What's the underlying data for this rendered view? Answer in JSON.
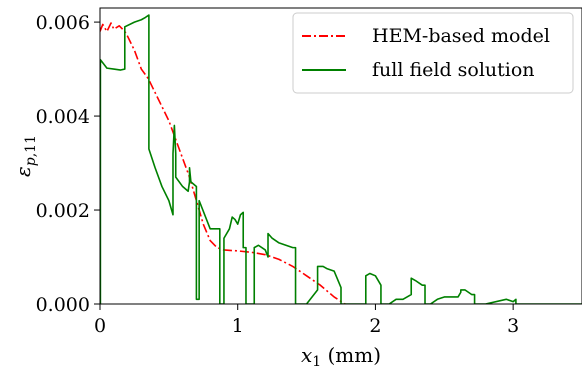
{
  "chart_data": {
    "type": "line",
    "xlabel": "x_1 (mm)",
    "ylabel": "ε_{p,11}",
    "xlim": [
      0,
      3.5
    ],
    "ylim": [
      0,
      0.0063
    ],
    "x_ticks": [
      0,
      1,
      2,
      3
    ],
    "y_ticks": [
      0.0,
      0.002,
      0.004,
      0.006
    ],
    "x_tick_labels": [
      "0",
      "1",
      "2",
      "3"
    ],
    "y_tick_labels": [
      "0.000",
      "0.002",
      "0.004",
      "0.006"
    ],
    "grid": false,
    "legend_position": "top-right",
    "series": [
      {
        "name": "HEM-based model",
        "color": "#ff0000",
        "style": "dash-dot",
        "x": [
          0,
          0.02,
          0.05,
          0.08,
          0.1,
          0.14,
          0.18,
          0.2,
          0.25,
          0.3,
          0.35,
          0.4,
          0.45,
          0.5,
          0.55,
          0.6,
          0.65,
          0.7,
          0.75,
          0.8,
          0.85,
          0.9,
          1.0,
          1.1,
          1.2,
          1.3,
          1.4,
          1.5,
          1.6,
          1.7,
          1.78
        ],
        "y": [
          0.0058,
          0.00595,
          0.0058,
          0.00598,
          0.00585,
          0.00592,
          0.0058,
          0.0057,
          0.0054,
          0.005,
          0.0048,
          0.0045,
          0.0042,
          0.0039,
          0.0035,
          0.0031,
          0.0027,
          0.0022,
          0.0017,
          0.00135,
          0.0012,
          0.00115,
          0.00113,
          0.0011,
          0.00105,
          0.00095,
          0.0008,
          0.0006,
          0.0004,
          0.00015,
          0.0
        ]
      },
      {
        "name": "full field solution",
        "color": "#008000",
        "style": "solid",
        "x": [
          0,
          0.003,
          0.003,
          0.05,
          0.1,
          0.15,
          0.18,
          0.18,
          0.25,
          0.3,
          0.33,
          0.355,
          0.355,
          0.4,
          0.45,
          0.5,
          0.53,
          0.53,
          0.54,
          0.55,
          0.55,
          0.6,
          0.64,
          0.65,
          0.65,
          0.66,
          0.7,
          0.7,
          0.72,
          0.72,
          0.8,
          0.87,
          0.87,
          0.9,
          0.9,
          0.94,
          0.96,
          0.98,
          1.0,
          1.02,
          1.04,
          1.04,
          1.06,
          1.06,
          1.12,
          1.12,
          1.15,
          1.2,
          1.22,
          1.22,
          1.25,
          1.3,
          1.35,
          1.4,
          1.42,
          1.42,
          1.5,
          1.58,
          1.58,
          1.62,
          1.65,
          1.7,
          1.75,
          1.75,
          1.85,
          1.93,
          1.93,
          1.96,
          2.0,
          2.04,
          2.04,
          2.1,
          2.15,
          2.2,
          2.26,
          2.26,
          2.29,
          2.34,
          2.36,
          2.36,
          2.4,
          2.45,
          2.5,
          2.6,
          2.62,
          2.62,
          2.65,
          2.7,
          2.72,
          2.72,
          2.8,
          2.95,
          3.0,
          3.02,
          3.02,
          3.2,
          3.5
        ],
        "y": [
          0.0,
          0.0,
          0.0052,
          0.00502,
          0.005,
          0.00498,
          0.005,
          0.0059,
          0.006,
          0.00605,
          0.0061,
          0.00615,
          0.0033,
          0.0029,
          0.0025,
          0.0022,
          0.0019,
          0.0032,
          0.0038,
          0.0032,
          0.0027,
          0.0025,
          0.0024,
          0.0026,
          0.0029,
          0.0026,
          0.0025,
          0.0001,
          0.0001,
          0.0022,
          0.0016,
          0.0016,
          0.0,
          0.0,
          0.0014,
          0.0016,
          0.00185,
          0.0018,
          0.0017,
          0.0019,
          0.00195,
          0.0012,
          0.0012,
          0.0,
          0.0,
          0.0012,
          0.00125,
          0.00115,
          0.001,
          0.0015,
          0.0014,
          0.0013,
          0.00125,
          0.0012,
          0.0012,
          0.0,
          0.0,
          0.0003,
          0.0008,
          0.0008,
          0.00075,
          0.0007,
          0.00035,
          0.0,
          0.0,
          0.0,
          0.0006,
          0.00065,
          0.0006,
          0.0004,
          0.0,
          0.0,
          0.0001,
          0.0001,
          0.0002,
          0.00055,
          0.0005,
          0.0004,
          0.0004,
          0.0,
          0.0,
          0.0001,
          0.00015,
          0.00015,
          0.00025,
          0.0003,
          0.0003,
          0.0002,
          0.0002,
          0.0,
          0.0,
          0.0001,
          5e-05,
          0.0001,
          0.0,
          0.0,
          0.0
        ]
      }
    ]
  }
}
